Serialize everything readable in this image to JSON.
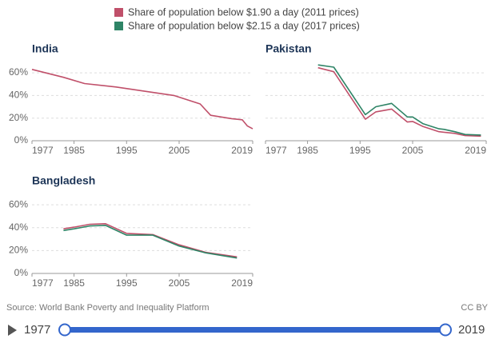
{
  "legend": [
    {
      "name": "Share of population below $1.90 a day (2011 prices)",
      "color": "#c0506a"
    },
    {
      "name": "Share of population below $2.15 a day (2017 prices)",
      "color": "#2e8466"
    }
  ],
  "chart_data": [
    {
      "type": "line",
      "title": "India",
      "x": [
        1977,
        1983,
        1987,
        1993,
        2004,
        2009,
        2011,
        2015,
        2017,
        2018,
        2019
      ],
      "series": [
        {
          "values": [
            63,
            56,
            50.5,
            47.5,
            40,
            32.5,
            22.5,
            19.5,
            18.5,
            13,
            10.5
          ]
        },
        {
          "values": [
            null,
            null,
            null,
            null,
            null,
            null,
            null,
            null,
            null,
            null,
            null
          ]
        }
      ],
      "xlim": [
        1977,
        2019
      ],
      "xticks": [
        1977,
        1985,
        1995,
        2005,
        2019
      ],
      "ylim": [
        0,
        65
      ],
      "yticks": [
        {
          "value": 0,
          "label": "0%"
        },
        {
          "value": 20,
          "label": "20%"
        },
        {
          "value": 40,
          "label": "40%"
        },
        {
          "value": 60,
          "label": "60%"
        }
      ],
      "grid": true
    },
    {
      "type": "line",
      "title": "Pakistan",
      "x": [
        1987,
        1990,
        1996,
        1998,
        2001,
        2004,
        2005,
        2007,
        2010,
        2011,
        2013,
        2015,
        2018
      ],
      "series": [
        {
          "values": [
            64.5,
            61,
            19,
            25.5,
            28,
            16.5,
            17,
            12.5,
            8,
            7.5,
            6.5,
            4.5,
            4
          ]
        },
        {
          "values": [
            67,
            65,
            23,
            30,
            33,
            21,
            21,
            15,
            10.5,
            10,
            8,
            5.5,
            5
          ]
        }
      ],
      "xlim": [
        1977,
        2019
      ],
      "xticks": [
        1977,
        1985,
        1995,
        2005,
        2019
      ],
      "ylim": [
        0,
        65
      ],
      "yticks": [
        0,
        20,
        40,
        60
      ],
      "grid": true
    },
    {
      "type": "line",
      "title": "Bangladesh",
      "x": [
        1983,
        1985,
        1988,
        1991,
        1995,
        2000,
        2005,
        2010,
        2016
      ],
      "series": [
        {
          "values": [
            39,
            40.5,
            43,
            43.5,
            35,
            34,
            25,
            18.5,
            14.5
          ]
        },
        {
          "values": [
            37.5,
            39,
            41.5,
            42,
            33.5,
            33.5,
            24,
            18,
            13.5
          ]
        }
      ],
      "xlim": [
        1977,
        2019
      ],
      "xticks": [
        1977,
        1985,
        1995,
        2005,
        2019
      ],
      "ylim": [
        0,
        65
      ],
      "yticks": [
        {
          "value": 0,
          "label": "0%"
        },
        {
          "value": 20,
          "label": "20%"
        },
        {
          "value": 40,
          "label": "40%"
        },
        {
          "value": 60,
          "label": "60%"
        }
      ],
      "grid": true
    }
  ],
  "source": "Source: World Bank Poverty and Inequality Platform",
  "license": "CC BY",
  "timeline": {
    "start": 1977,
    "end": 2019
  }
}
